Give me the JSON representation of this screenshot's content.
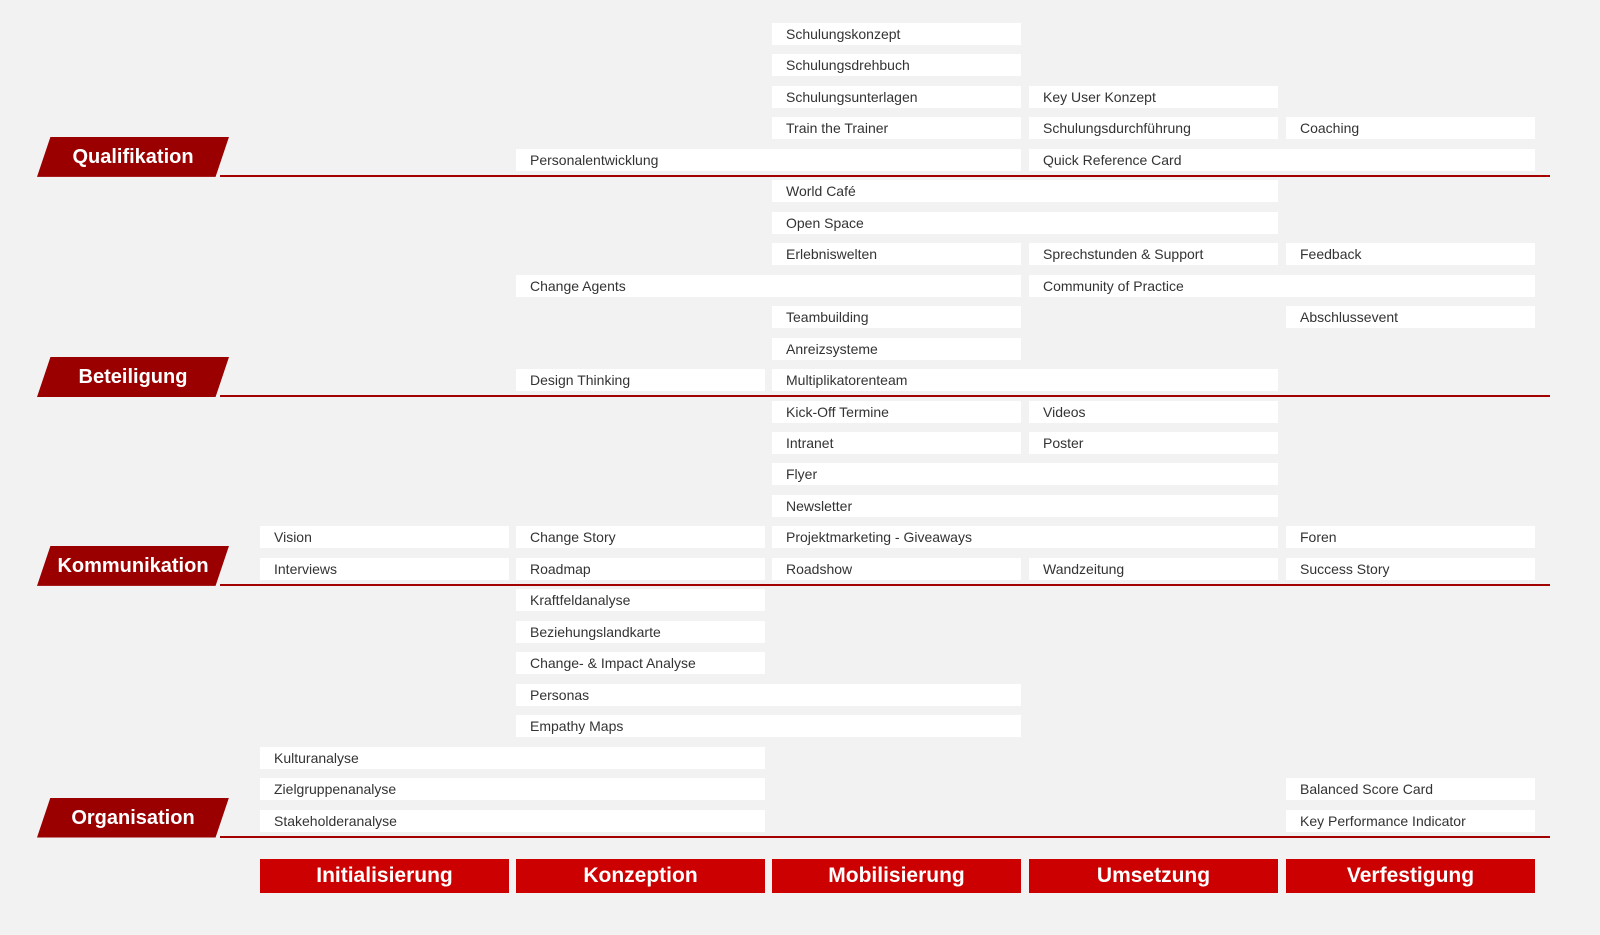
{
  "phases": [
    "Initialisierung",
    "Konzeption",
    "Mobilisierung",
    "Umsetzung",
    "Verfestigung"
  ],
  "colors": {
    "category": "#9b0000",
    "phase": "#cc0000",
    "divider": "#a30000",
    "background": "#f2f2f2"
  },
  "categories": [
    {
      "label": "Qualifikation",
      "last_row": 4
    },
    {
      "label": "Beteiligung",
      "last_row": 11
    },
    {
      "label": "Kommunikation",
      "last_row": 17
    },
    {
      "label": "Organisation",
      "last_row": 25
    }
  ],
  "rows": [
    [
      {
        "label": "Schulungskonzept",
        "from": "Mobilisierung",
        "to": "Mobilisierung"
      }
    ],
    [
      {
        "label": "Schulungsdrehbuch",
        "from": "Mobilisierung",
        "to": "Mobilisierung"
      }
    ],
    [
      {
        "label": "Schulungsunterlagen",
        "from": "Mobilisierung",
        "to": "Mobilisierung"
      },
      {
        "label": "Key User Konzept",
        "from": "Umsetzung",
        "to": "Umsetzung"
      }
    ],
    [
      {
        "label": "Train the Trainer",
        "from": "Mobilisierung",
        "to": "Mobilisierung"
      },
      {
        "label": "Schulungsdurchführung",
        "from": "Umsetzung",
        "to": "Umsetzung"
      },
      {
        "label": "Coaching",
        "from": "Verfestigung",
        "to": "Verfestigung"
      }
    ],
    [
      {
        "label": "Personalentwicklung",
        "from": "Konzeption",
        "to": "Mobilisierung"
      },
      {
        "label": "Quick Reference Card",
        "from": "Umsetzung",
        "to": "Verfestigung"
      }
    ],
    [
      {
        "label": "World Café",
        "from": "Mobilisierung",
        "to": "Umsetzung"
      }
    ],
    [
      {
        "label": "Open Space",
        "from": "Mobilisierung",
        "to": "Umsetzung"
      }
    ],
    [
      {
        "label": "Erlebniswelten",
        "from": "Mobilisierung",
        "to": "Mobilisierung"
      },
      {
        "label": "Sprechstunden & Support",
        "from": "Umsetzung",
        "to": "Umsetzung"
      },
      {
        "label": "Feedback",
        "from": "Verfestigung",
        "to": "Verfestigung"
      }
    ],
    [
      {
        "label": "Change Agents",
        "from": "Konzeption",
        "to": "Mobilisierung"
      },
      {
        "label": "Community of Practice",
        "from": "Umsetzung",
        "to": "Verfestigung"
      }
    ],
    [
      {
        "label": "Teambuilding",
        "from": "Mobilisierung",
        "to": "Mobilisierung"
      },
      {
        "label": "Abschlussevent",
        "from": "Verfestigung",
        "to": "Verfestigung"
      }
    ],
    [
      {
        "label": "Anreizsysteme",
        "from": "Mobilisierung",
        "to": "Mobilisierung"
      }
    ],
    [
      {
        "label": "Design Thinking",
        "from": "Konzeption",
        "to": "Konzeption"
      },
      {
        "label": "Multiplikatorenteam",
        "from": "Mobilisierung",
        "to": "Umsetzung"
      }
    ],
    [
      {
        "label": "Kick-Off Termine",
        "from": "Mobilisierung",
        "to": "Mobilisierung"
      },
      {
        "label": "Videos",
        "from": "Umsetzung",
        "to": "Umsetzung"
      }
    ],
    [
      {
        "label": "Intranet",
        "from": "Mobilisierung",
        "to": "Mobilisierung"
      },
      {
        "label": "Poster",
        "from": "Umsetzung",
        "to": "Umsetzung"
      }
    ],
    [
      {
        "label": "Flyer",
        "from": "Mobilisierung",
        "to": "Umsetzung"
      }
    ],
    [
      {
        "label": "Newsletter",
        "from": "Mobilisierung",
        "to": "Umsetzung"
      }
    ],
    [
      {
        "label": "Vision",
        "from": "Initialisierung",
        "to": "Initialisierung"
      },
      {
        "label": "Change Story",
        "from": "Konzeption",
        "to": "Konzeption"
      },
      {
        "label": "Projektmarketing - Giveaways",
        "from": "Mobilisierung",
        "to": "Umsetzung"
      },
      {
        "label": "Foren",
        "from": "Verfestigung",
        "to": "Verfestigung"
      }
    ],
    [
      {
        "label": "Interviews",
        "from": "Initialisierung",
        "to": "Initialisierung"
      },
      {
        "label": "Roadmap",
        "from": "Konzeption",
        "to": "Konzeption"
      },
      {
        "label": "Roadshow",
        "from": "Mobilisierung",
        "to": "Mobilisierung"
      },
      {
        "label": "Wandzeitung",
        "from": "Umsetzung",
        "to": "Umsetzung"
      },
      {
        "label": "Success Story",
        "from": "Verfestigung",
        "to": "Verfestigung"
      }
    ],
    [
      {
        "label": "Kraftfeldanalyse",
        "from": "Konzeption",
        "to": "Konzeption"
      }
    ],
    [
      {
        "label": "Beziehungslandkarte",
        "from": "Konzeption",
        "to": "Konzeption"
      }
    ],
    [
      {
        "label": "Change- & Impact Analyse",
        "from": "Konzeption",
        "to": "Konzeption"
      }
    ],
    [
      {
        "label": "Personas",
        "from": "Konzeption",
        "to": "Mobilisierung"
      }
    ],
    [
      {
        "label": "Empathy Maps",
        "from": "Konzeption",
        "to": "Mobilisierung"
      }
    ],
    [
      {
        "label": "Kulturanalyse",
        "from": "Initialisierung",
        "to": "Konzeption"
      }
    ],
    [
      {
        "label": "Zielgruppenanalyse",
        "from": "Initialisierung",
        "to": "Konzeption"
      },
      {
        "label": "Balanced Score Card",
        "from": "Verfestigung",
        "to": "Verfestigung"
      }
    ],
    [
      {
        "label": "Stakeholderanalyse",
        "from": "Initialisierung",
        "to": "Konzeption"
      },
      {
        "label": "Key Performance Indicator",
        "from": "Verfestigung",
        "to": "Verfestigung"
      }
    ]
  ]
}
